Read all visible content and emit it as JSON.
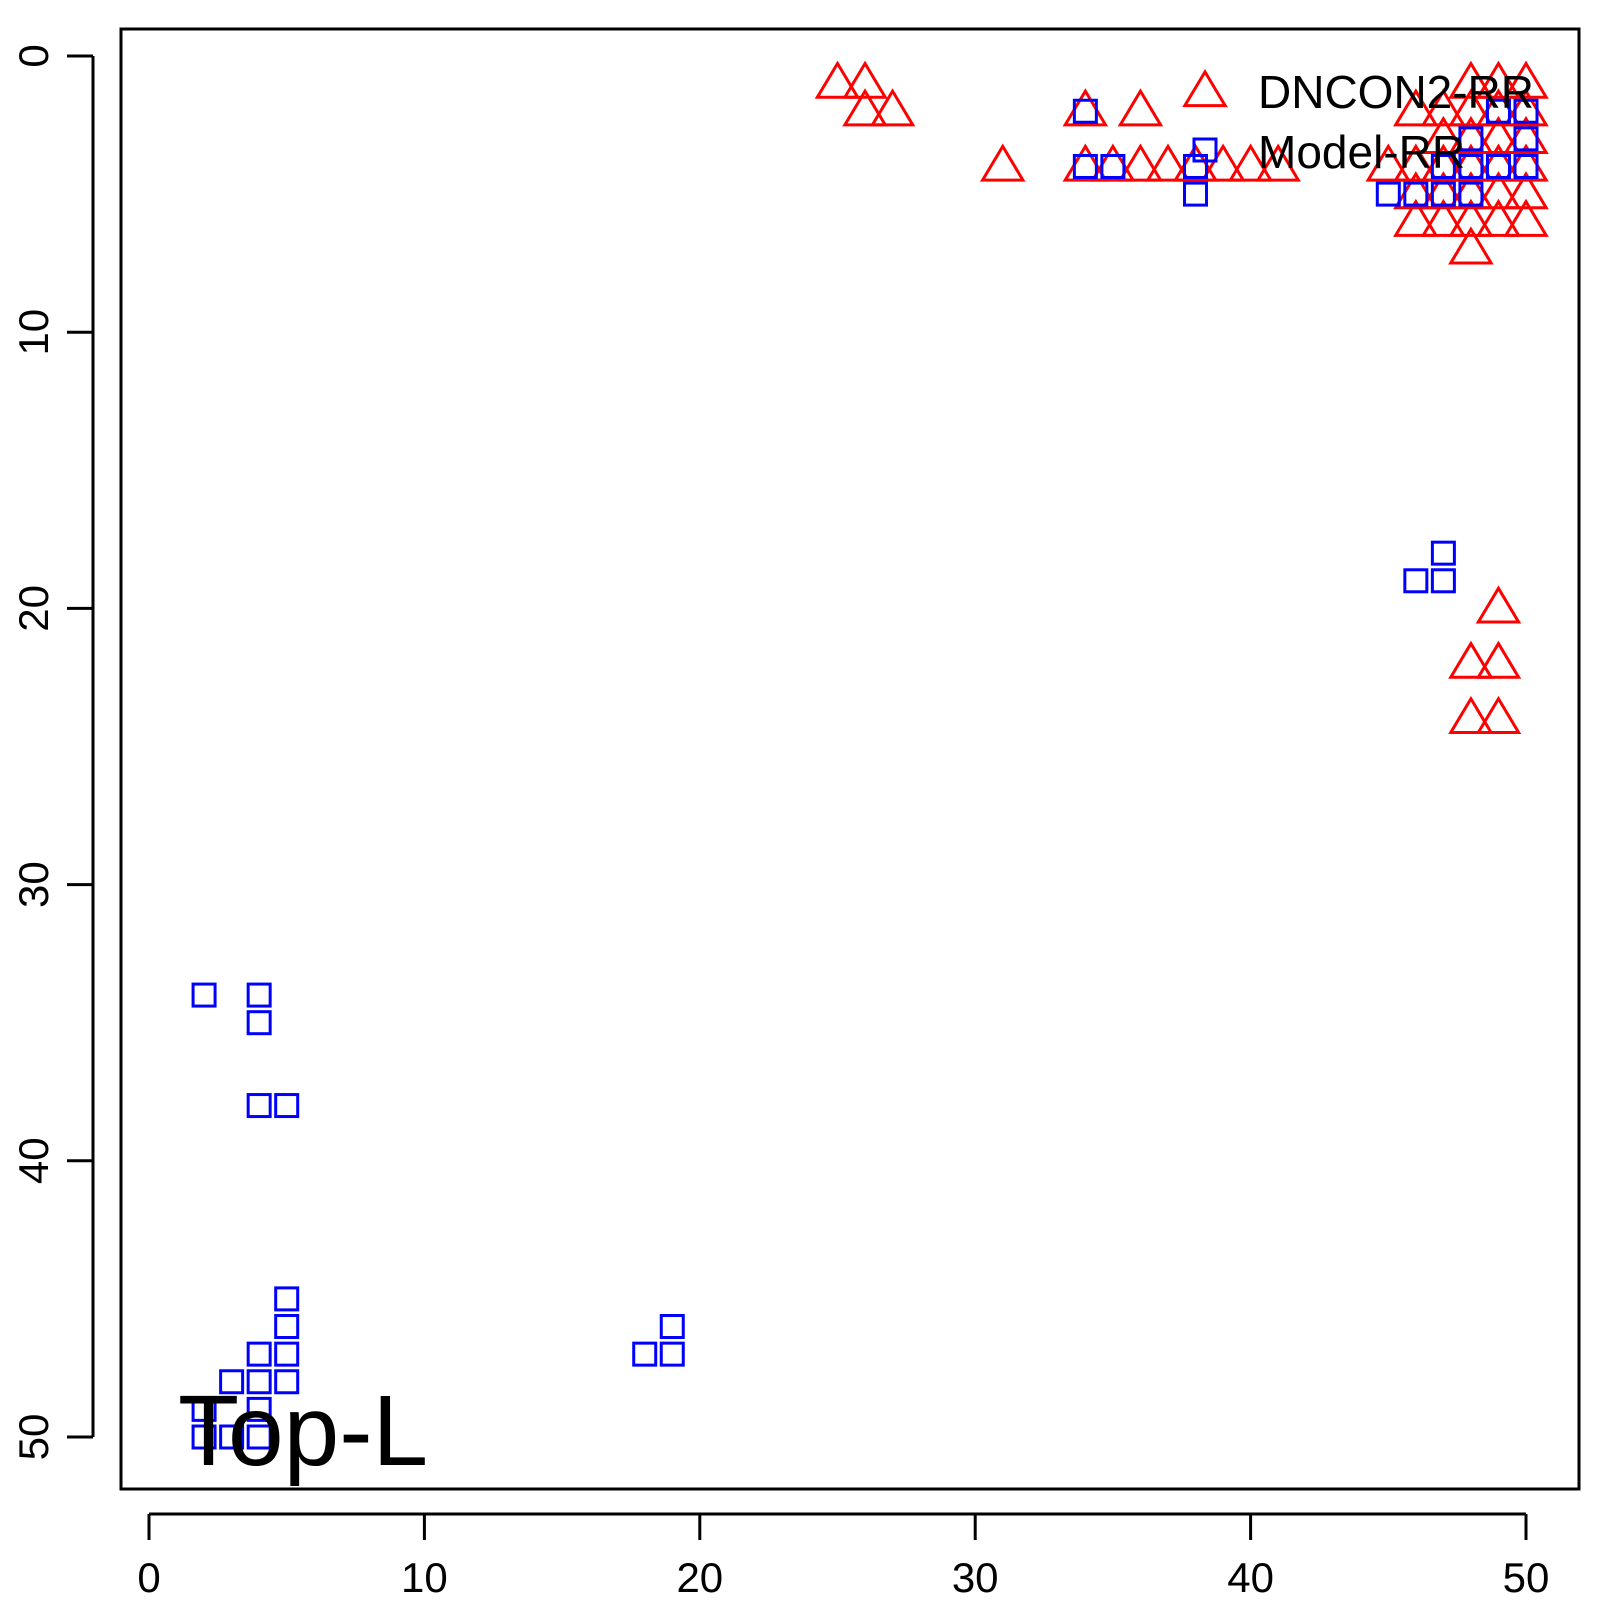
{
  "chart_data": {
    "type": "scatter",
    "title": "",
    "xlabel": "",
    "ylabel": "",
    "xlim": [
      0,
      50
    ],
    "ylim": [
      0,
      50
    ],
    "y_axis_inverted": true,
    "grid": false,
    "legend_placement": "top-right",
    "x_ticks": [
      "0",
      "10",
      "20",
      "30",
      "40",
      "50"
    ],
    "y_ticks": [
      "0",
      "10",
      "20",
      "30",
      "40",
      "50"
    ],
    "annotation": "Top-L",
    "series": [
      {
        "name": "DNCON2-RR",
        "marker": "triangle",
        "color": "#ff0000",
        "points": [
          [
            25,
            1
          ],
          [
            26,
            1
          ],
          [
            26,
            2
          ],
          [
            27,
            2
          ],
          [
            31,
            4
          ],
          [
            34,
            2
          ],
          [
            34,
            4
          ],
          [
            35,
            4
          ],
          [
            36,
            2
          ],
          [
            36,
            4
          ],
          [
            37,
            4
          ],
          [
            38,
            4
          ],
          [
            39,
            4
          ],
          [
            40,
            4
          ],
          [
            41,
            4
          ],
          [
            45,
            4
          ],
          [
            46,
            2
          ],
          [
            46,
            4
          ],
          [
            46,
            5
          ],
          [
            46,
            6
          ],
          [
            47,
            2
          ],
          [
            47,
            3
          ],
          [
            47,
            4
          ],
          [
            47,
            5
          ],
          [
            47,
            6
          ],
          [
            48,
            1
          ],
          [
            48,
            2
          ],
          [
            48,
            3
          ],
          [
            48,
            4
          ],
          [
            48,
            5
          ],
          [
            48,
            6
          ],
          [
            48,
            7
          ],
          [
            49,
            1
          ],
          [
            49,
            2
          ],
          [
            49,
            3
          ],
          [
            49,
            4
          ],
          [
            49,
            5
          ],
          [
            49,
            6
          ],
          [
            50,
            1
          ],
          [
            50,
            2
          ],
          [
            50,
            3
          ],
          [
            50,
            4
          ],
          [
            50,
            5
          ],
          [
            50,
            6
          ],
          [
            49,
            20
          ],
          [
            48,
            22
          ],
          [
            49,
            22
          ],
          [
            48,
            24
          ],
          [
            49,
            24
          ]
        ]
      },
      {
        "name": "Model-RR",
        "marker": "square",
        "color": "#0000ff",
        "points": [
          [
            34,
            2
          ],
          [
            34,
            4
          ],
          [
            35,
            4
          ],
          [
            38,
            5
          ],
          [
            38,
            4
          ],
          [
            45,
            5
          ],
          [
            46,
            5
          ],
          [
            47,
            5
          ],
          [
            48,
            5
          ],
          [
            47,
            4
          ],
          [
            48,
            4
          ],
          [
            48,
            3
          ],
          [
            49,
            4
          ],
          [
            49,
            2
          ],
          [
            50,
            2
          ],
          [
            50,
            3
          ],
          [
            50,
            4
          ],
          [
            47,
            18
          ],
          [
            46,
            19
          ],
          [
            47,
            19
          ],
          [
            2,
            34
          ],
          [
            4,
            34
          ],
          [
            4,
            35
          ],
          [
            4,
            38
          ],
          [
            5,
            38
          ],
          [
            5,
            45
          ],
          [
            5,
            46
          ],
          [
            4,
            47
          ],
          [
            5,
            47
          ],
          [
            3,
            48
          ],
          [
            4,
            48
          ],
          [
            5,
            48
          ],
          [
            2,
            49
          ],
          [
            4,
            49
          ],
          [
            2,
            50
          ],
          [
            3,
            50
          ],
          [
            4,
            50
          ],
          [
            18,
            47
          ],
          [
            19,
            47
          ],
          [
            19,
            46
          ]
        ]
      }
    ]
  }
}
